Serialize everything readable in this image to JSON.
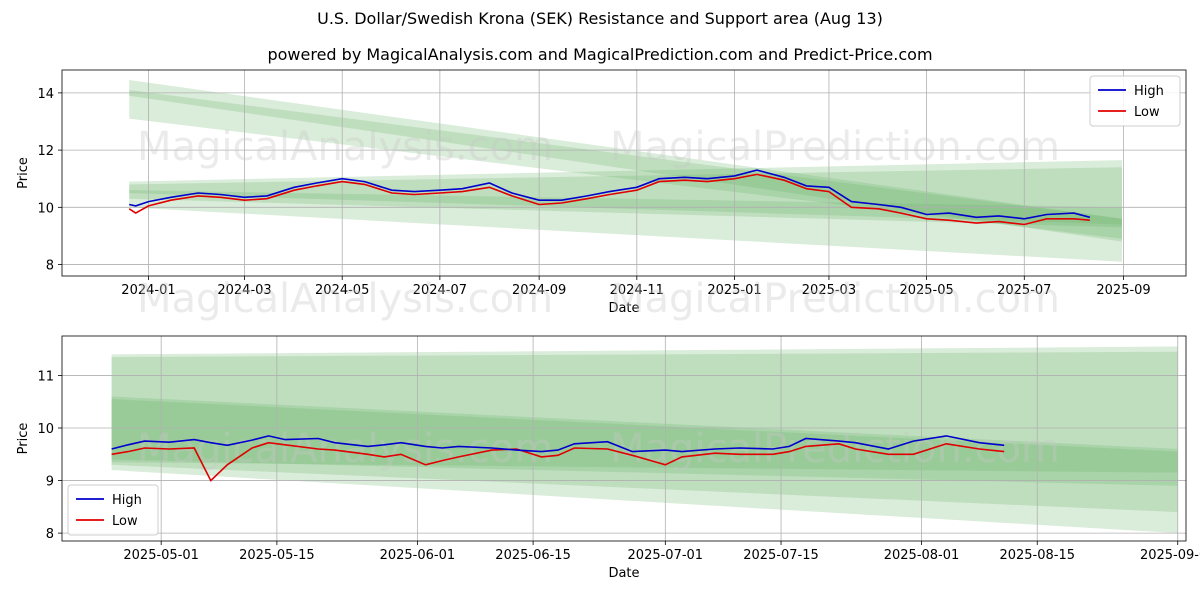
{
  "title": "U.S. Dollar/Swedish Krona (SEK) Resistance and Support area (Aug 13)",
  "subtitle": "powered by MagicalAnalysis.com and MagicalPrediction.com and Predict-Price.com",
  "watermarks": [
    "MagicalAnalysis.com",
    "MagicalPrediction.com"
  ],
  "colors": {
    "high": "#0000cc",
    "low": "#e00000",
    "band": "#6ab46a",
    "grid": "#b0b0b0"
  },
  "chart_data": [
    {
      "type": "line",
      "title": "",
      "xlabel": "Date",
      "ylabel": "Price",
      "xlim": [
        "2023-11-08",
        "2025-10-10"
      ],
      "ylim": [
        7.6,
        14.8
      ],
      "x_ticks": [
        "2024-01",
        "2024-03",
        "2024-05",
        "2024-07",
        "2024-09",
        "2024-11",
        "2025-01",
        "2025-03",
        "2025-05",
        "2025-07",
        "2025-09"
      ],
      "y_ticks": [
        8,
        10,
        12,
        14
      ],
      "grid": true,
      "legend": "top-right",
      "x": [
        "2023-12-20",
        "2023-12-24",
        "2024-01-01",
        "2024-01-15",
        "2024-02-01",
        "2024-02-15",
        "2024-03-01",
        "2024-03-15",
        "2024-04-01",
        "2024-04-15",
        "2024-05-01",
        "2024-05-15",
        "2024-06-01",
        "2024-06-15",
        "2024-07-01",
        "2024-07-15",
        "2024-08-01",
        "2024-08-15",
        "2024-09-01",
        "2024-09-15",
        "2024-10-01",
        "2024-10-15",
        "2024-11-01",
        "2024-11-15",
        "2024-12-01",
        "2024-12-15",
        "2025-01-01",
        "2025-01-15",
        "2025-02-01",
        "2025-02-15",
        "2025-03-01",
        "2025-03-15",
        "2025-04-01",
        "2025-04-15",
        "2025-05-01",
        "2025-05-15",
        "2025-06-01",
        "2025-06-15",
        "2025-07-01",
        "2025-07-15",
        "2025-08-01",
        "2025-08-11"
      ],
      "series": [
        {
          "name": "High",
          "values": [
            10.1,
            10.05,
            10.2,
            10.35,
            10.5,
            10.45,
            10.35,
            10.4,
            10.7,
            10.85,
            11.0,
            10.9,
            10.6,
            10.55,
            10.6,
            10.65,
            10.85,
            10.5,
            10.25,
            10.25,
            10.4,
            10.55,
            10.7,
            11.0,
            11.05,
            11.0,
            11.1,
            11.3,
            11.05,
            10.75,
            10.7,
            10.2,
            10.1,
            10.0,
            9.75,
            9.8,
            9.65,
            9.7,
            9.6,
            9.75,
            9.8,
            9.65
          ]
        },
        {
          "name": "Low",
          "values": [
            9.95,
            9.8,
            10.05,
            10.25,
            10.4,
            10.35,
            10.25,
            10.3,
            10.6,
            10.75,
            10.9,
            10.8,
            10.5,
            10.45,
            10.5,
            10.55,
            10.7,
            10.4,
            10.1,
            10.15,
            10.3,
            10.45,
            10.6,
            10.9,
            10.95,
            10.9,
            11.0,
            11.15,
            10.95,
            10.65,
            10.55,
            10.0,
            9.95,
            9.8,
            9.6,
            9.55,
            9.45,
            9.5,
            9.4,
            9.6,
            9.6,
            9.55
          ]
        }
      ],
      "bands": [
        {
          "x": [
            "2023-12-20",
            "2025-08-31"
          ],
          "upper": [
            14.45,
            9.6
          ],
          "lower": [
            13.1,
            8.9
          ]
        },
        {
          "x": [
            "2023-12-20",
            "2025-08-31"
          ],
          "upper": [
            14.1,
            9.6
          ],
          "lower": [
            13.9,
            8.8
          ]
        },
        {
          "x": [
            "2023-12-20",
            "2025-08-31"
          ],
          "upper": [
            10.9,
            11.65
          ],
          "lower": [
            10.3,
            9.3
          ]
        },
        {
          "x": [
            "2023-12-20",
            "2025-08-31"
          ],
          "upper": [
            10.8,
            11.4
          ],
          "lower": [
            10.5,
            9.4
          ]
        },
        {
          "x": [
            "2023-12-20",
            "2025-08-31"
          ],
          "upper": [
            10.6,
            10.0
          ],
          "lower": [
            10.0,
            8.1
          ]
        }
      ]
    },
    {
      "type": "line",
      "title": "",
      "xlabel": "Date",
      "ylabel": "Price",
      "xlim": [
        "2025-04-19",
        "2025-09-02"
      ],
      "ylim": [
        7.85,
        11.75
      ],
      "x_ticks": [
        "2025-05-01",
        "2025-05-15",
        "2025-06-01",
        "2025-06-15",
        "2025-07-01",
        "2025-07-15",
        "2025-08-01",
        "2025-08-15",
        "2025-09-01"
      ],
      "y_ticks": [
        8,
        9,
        10,
        11
      ],
      "grid": true,
      "legend": "bottom-left",
      "x": [
        "2025-04-25",
        "2025-04-27",
        "2025-04-29",
        "2025-05-02",
        "2025-05-05",
        "2025-05-07",
        "2025-05-09",
        "2025-05-12",
        "2025-05-14",
        "2025-05-16",
        "2025-05-20",
        "2025-05-22",
        "2025-05-26",
        "2025-05-28",
        "2025-05-30",
        "2025-06-02",
        "2025-06-04",
        "2025-06-06",
        "2025-06-10",
        "2025-06-13",
        "2025-06-16",
        "2025-06-18",
        "2025-06-20",
        "2025-06-24",
        "2025-06-27",
        "2025-07-01",
        "2025-07-03",
        "2025-07-07",
        "2025-07-10",
        "2025-07-14",
        "2025-07-16",
        "2025-07-18",
        "2025-07-22",
        "2025-07-24",
        "2025-07-28",
        "2025-07-31",
        "2025-08-04",
        "2025-08-08",
        "2025-08-11"
      ],
      "series": [
        {
          "name": "High",
          "values": [
            9.6,
            9.68,
            9.75,
            9.73,
            9.78,
            9.72,
            9.67,
            9.77,
            9.85,
            9.78,
            9.8,
            9.72,
            9.65,
            9.68,
            9.72,
            9.65,
            9.62,
            9.65,
            9.62,
            9.58,
            9.55,
            9.58,
            9.7,
            9.74,
            9.55,
            9.58,
            9.55,
            9.6,
            9.62,
            9.6,
            9.65,
            9.8,
            9.75,
            9.72,
            9.6,
            9.75,
            9.85,
            9.72,
            9.67
          ]
        },
        {
          "name": "Low",
          "values": [
            9.5,
            9.55,
            9.62,
            9.6,
            9.62,
            9.0,
            9.3,
            9.62,
            9.72,
            9.68,
            9.6,
            9.58,
            9.5,
            9.45,
            9.5,
            9.3,
            9.38,
            9.45,
            9.58,
            9.6,
            9.45,
            9.48,
            9.62,
            9.6,
            9.48,
            9.3,
            9.45,
            9.52,
            9.5,
            9.5,
            9.55,
            9.65,
            9.7,
            9.6,
            9.5,
            9.5,
            9.7,
            9.6,
            9.55
          ]
        }
      ],
      "bands": [
        {
          "x": [
            "2025-04-25",
            "2025-09-01"
          ],
          "upper": [
            11.4,
            11.55
          ],
          "lower": [
            9.2,
            8.0
          ]
        },
        {
          "x": [
            "2025-04-25",
            "2025-09-01"
          ],
          "upper": [
            11.35,
            11.45
          ],
          "lower": [
            9.3,
            8.4
          ]
        },
        {
          "x": [
            "2025-04-25",
            "2025-09-01"
          ],
          "upper": [
            10.6,
            9.6
          ],
          "lower": [
            9.4,
            8.9
          ]
        },
        {
          "x": [
            "2025-04-25",
            "2025-09-01"
          ],
          "upper": [
            10.55,
            9.55
          ],
          "lower": [
            9.35,
            9.15
          ]
        }
      ]
    }
  ]
}
